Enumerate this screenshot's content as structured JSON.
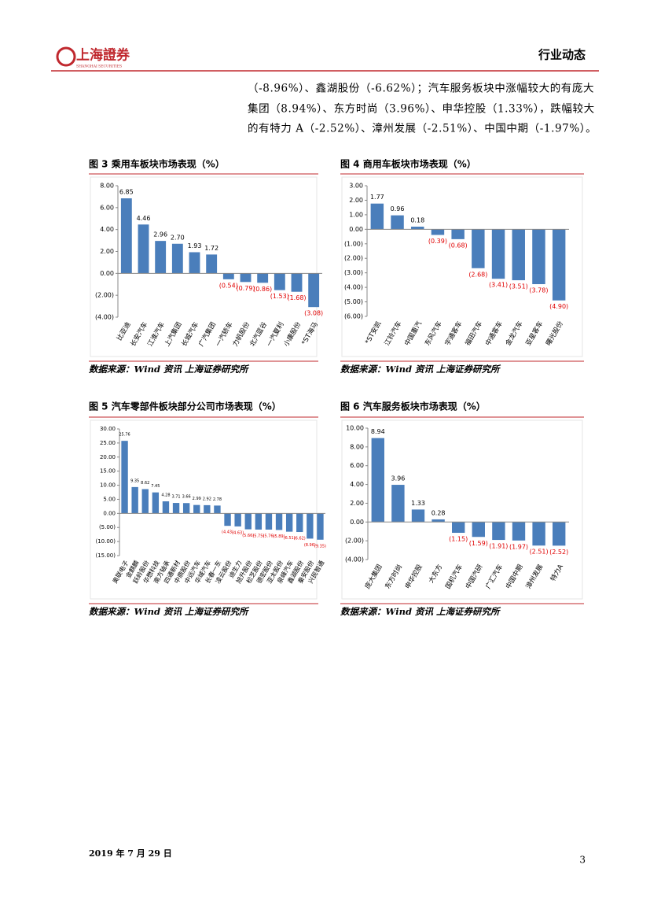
{
  "header": {
    "logo_text": "上海證券",
    "logo_subtext": "SHANGHAI SECURITIES",
    "section": "行业动态"
  },
  "body": {
    "lines": [
      "（-8.96%）、鑫湖股份（-6.62%）；汽车服务板块中涨幅较大的有庞大",
      "集团（8.94%）、东方时尚（3.96%）、申华控股（1.33%），跌幅较大",
      "的有特力 A（-2.52%）、漳州发展（-2.51%）、中国中期（-1.97%）。"
    ]
  },
  "chart_data": [
    {
      "type": "bar",
      "title": "图 3 乘用车板块市场表现（%）",
      "source": "数据来源：Wind 资讯 上海证券研究所",
      "categories": [
        "比亚迪",
        "长安汽车",
        "江淮汽车",
        "上汽集团",
        "长城汽车",
        "广汽集团",
        "一汽轿车",
        "力帆股份",
        "北汽蓝谷",
        "一汽夏利",
        "小康股份",
        "*ST海马"
      ],
      "values": [
        6.85,
        4.46,
        2.96,
        2.7,
        1.93,
        1.72,
        -0.54,
        -0.79,
        -0.86,
        -1.53,
        -1.68,
        -3.08
      ],
      "value_labels": [
        "6.85",
        "4.46",
        "2.96",
        "2.70",
        "1.93",
        "1.72",
        "(0.54)",
        "(0.79)",
        "(0.86)",
        "(1.53)",
        "(1.68)",
        "(3.08)"
      ],
      "color": "#4a7ebb",
      "negative_label_color": "#e00000",
      "ylim": [
        -4,
        8
      ],
      "yticks": [
        {
          "value": -4,
          "label": "(4.00)"
        },
        {
          "value": -2,
          "label": "(2.00)"
        },
        {
          "value": 0,
          "label": "0.00"
        },
        {
          "value": 2,
          "label": "2.00"
        },
        {
          "value": 4,
          "label": "4.00"
        },
        {
          "value": 6,
          "label": "6.00"
        },
        {
          "value": 8,
          "label": "8.00"
        }
      ]
    },
    {
      "type": "bar",
      "title": "图 4 商用车板块市场表现（%）",
      "source": "数据来源：Wind 资讯 上海证券研究所",
      "categories": [
        "*ST安凯",
        "江铃汽车",
        "中国重汽",
        "东风汽车",
        "宇通客车",
        "福田汽车",
        "中通客车",
        "金龙汽车",
        "亚星客车",
        "曙光股份"
      ],
      "values": [
        1.77,
        0.96,
        0.18,
        -0.39,
        -0.68,
        -2.68,
        -3.41,
        -3.51,
        -3.78,
        -4.9
      ],
      "value_labels": [
        "1.77",
        "0.96",
        "0.18",
        "(0.39)",
        "(0.68)",
        "(2.68)",
        "(3.41)",
        "(3.51)",
        "(3.78)",
        "(4.90)"
      ],
      "color": "#4a7ebb",
      "negative_label_color": "#e00000",
      "ylim": [
        -6,
        3
      ],
      "yticks": [
        {
          "value": -6,
          "label": "(6.00)"
        },
        {
          "value": -5,
          "label": "(5.00)"
        },
        {
          "value": -4,
          "label": "(4.00)"
        },
        {
          "value": -3,
          "label": "(3.00)"
        },
        {
          "value": -2,
          "label": "(2.00)"
        },
        {
          "value": -1,
          "label": "(1.00)"
        },
        {
          "value": 0,
          "label": "0.00"
        },
        {
          "value": 1,
          "label": "1.00"
        },
        {
          "value": 2,
          "label": "2.00"
        },
        {
          "value": 3,
          "label": "3.00"
        }
      ]
    },
    {
      "type": "bar",
      "title": "图 5 汽车零部件板块部分公司市场表现（%）",
      "source": "数据来源：Wind 资讯 上海证券研究所",
      "categories": [
        "奥联电子",
        "金麒麟",
        "跃岭股份",
        "华懋科技",
        "南方轴承",
        "四通新材",
        "中鼎股份",
        "中远汽车",
        "华域汽车",
        "长春一东",
        "凌云股份",
        "迪生力",
        "旭升股份",
        "松芝股份",
        "德宏股份",
        "亚太股份",
        "泉峰汽车",
        "鑫湖股份",
        "秦安股份",
        "兴民智通"
      ],
      "values": [
        25.76,
        9.35,
        8.62,
        7.45,
        4.28,
        3.71,
        3.66,
        2.99,
        2.92,
        2.78,
        -4.43,
        -4.63,
        -5.66,
        -5.75,
        -5.76,
        -5.89,
        -6.51,
        -6.62,
        -8.96,
        -9.35
      ],
      "value_labels": [
        "25.76",
        "9.35",
        "8.62",
        "7.45",
        "4.28",
        "3.71",
        "3.66",
        "2.99",
        "2.92",
        "2.78",
        "(4.43)",
        "(4.63)",
        "(5.66)",
        "(5.75)",
        "(5.76)",
        "(5.89)",
        "(6.51)",
        "(6.62)",
        "(8.96)",
        "(9.35)"
      ],
      "color": "#4a7ebb",
      "negative_label_color": "#e00000",
      "ylim": [
        -15,
        30
      ],
      "yticks": [
        {
          "value": -15,
          "label": "(15.00)"
        },
        {
          "value": -10,
          "label": "(10.00)"
        },
        {
          "value": -5,
          "label": "(5.00)"
        },
        {
          "value": 0,
          "label": "0.00"
        },
        {
          "value": 5,
          "label": "5.00"
        },
        {
          "value": 10,
          "label": "10.00"
        },
        {
          "value": 15,
          "label": "15.00"
        },
        {
          "value": 20,
          "label": "20.00"
        },
        {
          "value": 25,
          "label": "25.00"
        },
        {
          "value": 30,
          "label": "30.00"
        }
      ]
    },
    {
      "type": "bar",
      "title": "图 6 汽车服务板块市场表现（%）",
      "source": "数据来源：Wind 资讯 上海证券研究所",
      "categories": [
        "庞大集团",
        "东方时尚",
        "申华控股",
        "大东方",
        "国机汽车",
        "中国汽研",
        "广汇汽车",
        "中国中期",
        "漳州发展",
        "特力A"
      ],
      "values": [
        8.94,
        3.96,
        1.33,
        0.28,
        -1.15,
        -1.59,
        -1.91,
        -1.97,
        -2.51,
        -2.52
      ],
      "value_labels": [
        "8.94",
        "3.96",
        "1.33",
        "0.28",
        "(1.15)",
        "(1.59)",
        "(1.91)",
        "(1.97)",
        "(2.51)",
        "(2.52)"
      ],
      "color": "#4a7ebb",
      "negative_label_color": "#e00000",
      "ylim": [
        -4,
        10
      ],
      "yticks": [
        {
          "value": -4,
          "label": "(4.00)"
        },
        {
          "value": -2,
          "label": "(2.00)"
        },
        {
          "value": 0,
          "label": "0.00"
        },
        {
          "value": 2,
          "label": "2.00"
        },
        {
          "value": 4,
          "label": "4.00"
        },
        {
          "value": 6,
          "label": "6.00"
        },
        {
          "value": 8,
          "label": "8.00"
        },
        {
          "value": 10,
          "label": "10.00"
        }
      ]
    }
  ],
  "footer": {
    "date": "2019 年 7 月 29 日",
    "page": "3"
  }
}
